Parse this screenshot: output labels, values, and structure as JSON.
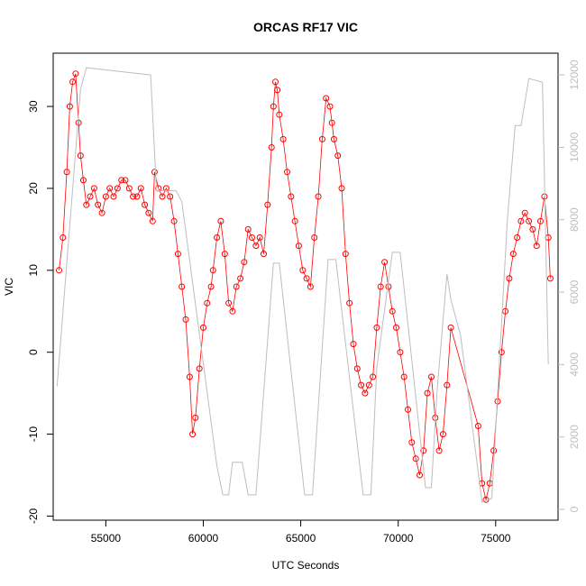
{
  "chart_data": {
    "type": "scatter",
    "title": "ORCAS RF17 VIC",
    "xlabel": "UTC Seconds",
    "ylabel": "VIC",
    "xlim": [
      52300,
      78200
    ],
    "ylim": [
      -20.5,
      36.5
    ],
    "x_ticks": [
      55000,
      60000,
      65000,
      70000,
      75000
    ],
    "x_tick_labels": [
      "55000",
      "60000",
      "65000",
      "70000",
      "75000"
    ],
    "y_ticks": [
      -20,
      -10,
      0,
      10,
      20,
      30
    ],
    "y_tick_labels": [
      "-20",
      "-10",
      "0",
      "10",
      "20",
      "30"
    ],
    "y2lim": [
      -300,
      12600
    ],
    "y2_ticks": [
      0,
      2000,
      4000,
      6000,
      8000,
      10000,
      12000
    ],
    "y2_tick_labels": [
      "0",
      "2000",
      "4000",
      "6000",
      "8000",
      "10000",
      "12000"
    ],
    "grid": false,
    "series": [
      {
        "axis": "left",
        "style": "points",
        "marker": "open-circle",
        "color": "#ff0000",
        "x": [
          52600,
          52800,
          53000,
          53150,
          53300,
          53450,
          53600,
          53700,
          53850,
          54000,
          54200,
          54400,
          54600,
          54800,
          55000,
          55200,
          55400,
          55600,
          55800,
          56000,
          56200,
          56400,
          56600,
          56800,
          57000,
          57200,
          57400,
          57500,
          57700,
          57900,
          58100,
          58300,
          58500,
          58700,
          58900,
          59100,
          59300,
          59450,
          59600,
          59800,
          60000,
          60200,
          60400,
          60500,
          60700,
          60900,
          61100,
          61300,
          61500,
          61700,
          61900,
          62100,
          62300,
          62500,
          62700,
          62900,
          63100,
          63300,
          63500,
          63600,
          63700,
          63800,
          63900,
          64100,
          64300,
          64500,
          64700,
          64900,
          65100,
          65300,
          65500,
          65700,
          65900,
          66100,
          66300,
          66500,
          66600,
          66700,
          66900,
          67100,
          67300,
          67500,
          67700,
          67900,
          68100,
          68300,
          68500,
          68700,
          68900,
          69100,
          69300,
          69500,
          69700,
          69900,
          70100,
          70300,
          70500,
          70700,
          70900,
          71100,
          71300,
          71500,
          71700,
          71900,
          72100,
          72300,
          72500,
          72700,
          74100,
          74300,
          74500,
          74700,
          74900,
          75100,
          75300,
          75500,
          75700,
          75900,
          76100,
          76300,
          76500,
          76700,
          76900,
          77100,
          77300,
          77500,
          77700,
          77800
        ],
        "y": [
          10,
          14,
          22,
          30,
          33,
          34,
          28,
          24,
          21,
          18,
          19,
          20,
          18,
          17,
          19,
          20,
          19,
          20,
          21,
          21,
          20,
          19,
          19,
          20,
          18,
          17,
          16,
          22,
          20,
          19,
          20,
          19,
          16,
          12,
          8,
          4,
          -3,
          -10,
          -8,
          -2,
          3,
          6,
          8,
          10,
          14,
          16,
          12,
          6,
          5,
          8,
          9,
          11,
          15,
          14,
          13,
          14,
          12,
          18,
          25,
          30,
          33,
          32,
          29,
          26,
          22,
          19,
          16,
          13,
          10,
          9,
          8,
          14,
          19,
          26,
          31,
          30,
          28,
          26,
          24,
          20,
          12,
          6,
          1,
          -2,
          -4,
          -5,
          -4,
          -3,
          3,
          8,
          11,
          8,
          5,
          3,
          0,
          -3,
          -7,
          -11,
          -13,
          -15,
          -12,
          -5,
          -3,
          -8,
          -12,
          -10,
          -4,
          3,
          -9,
          -16,
          -18,
          -16,
          -12,
          -6,
          0,
          5,
          9,
          12,
          14,
          16,
          17,
          16,
          15,
          13,
          16,
          19,
          14,
          9
        ]
      },
      {
        "axis": "right",
        "style": "line",
        "color": "#bebebe",
        "x": [
          52500,
          53700,
          54000,
          57300,
          57600,
          58600,
          58900,
          60700,
          61000,
          61300,
          61500,
          62000,
          62300,
          62700,
          63600,
          63900,
          65200,
          65600,
          66400,
          66800,
          68200,
          68600,
          68900,
          69700,
          70100,
          71400,
          71700,
          72000,
          72500,
          72700,
          73200,
          74300,
          74800,
          75600,
          76000,
          76300,
          76700,
          77400,
          77700
        ],
        "y": [
          3400,
          11600,
          12200,
          12000,
          8800,
          8800,
          8500,
          1200,
          400,
          400,
          1300,
          1300,
          400,
          400,
          6800,
          6800,
          400,
          400,
          6900,
          6900,
          400,
          400,
          3900,
          7100,
          7100,
          600,
          600,
          3300,
          6500,
          5800,
          4800,
          200,
          300,
          8000,
          10600,
          10600,
          11900,
          11800,
          4000
        ]
      }
    ]
  }
}
